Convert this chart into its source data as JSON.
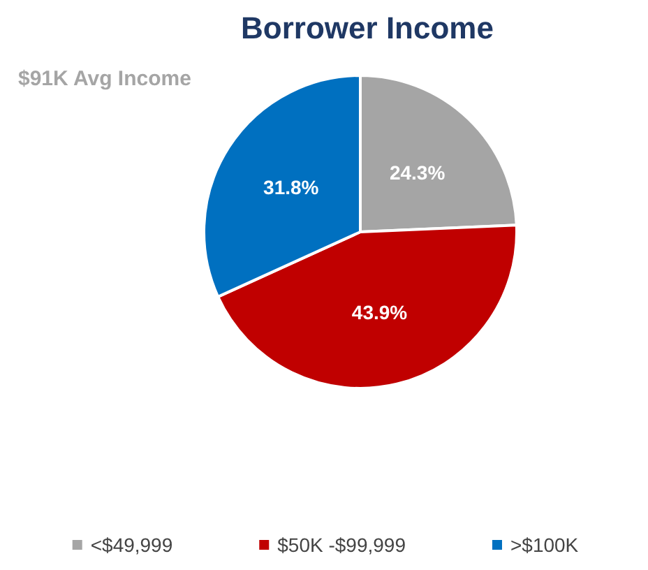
{
  "chart_data": {
    "type": "pie",
    "title": "Borrower Income",
    "subtitle": "$91K Avg Income",
    "categories": [
      "<$49,999",
      "$50K -$99,999",
      ">$100K"
    ],
    "values": [
      24.3,
      43.9,
      31.8
    ],
    "colors": [
      "#a5a5a5",
      "#c00000",
      "#0070c0"
    ],
    "value_labels": [
      "24.3%",
      "43.9%",
      "31.8%"
    ],
    "legend": "bottom"
  }
}
